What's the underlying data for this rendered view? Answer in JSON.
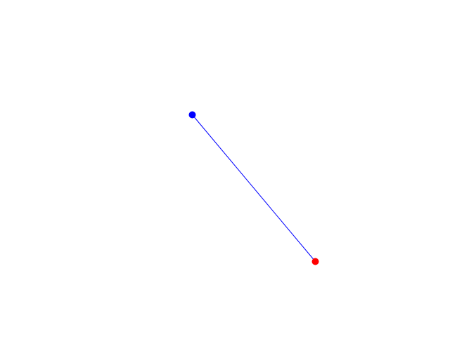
{
  "scene": {
    "background_color": "#ffffff",
    "start_point": {
      "color": "#0000ff"
    },
    "end_point": {
      "color": "#ff0000"
    },
    "connector": {
      "color": "#0000ff"
    }
  }
}
